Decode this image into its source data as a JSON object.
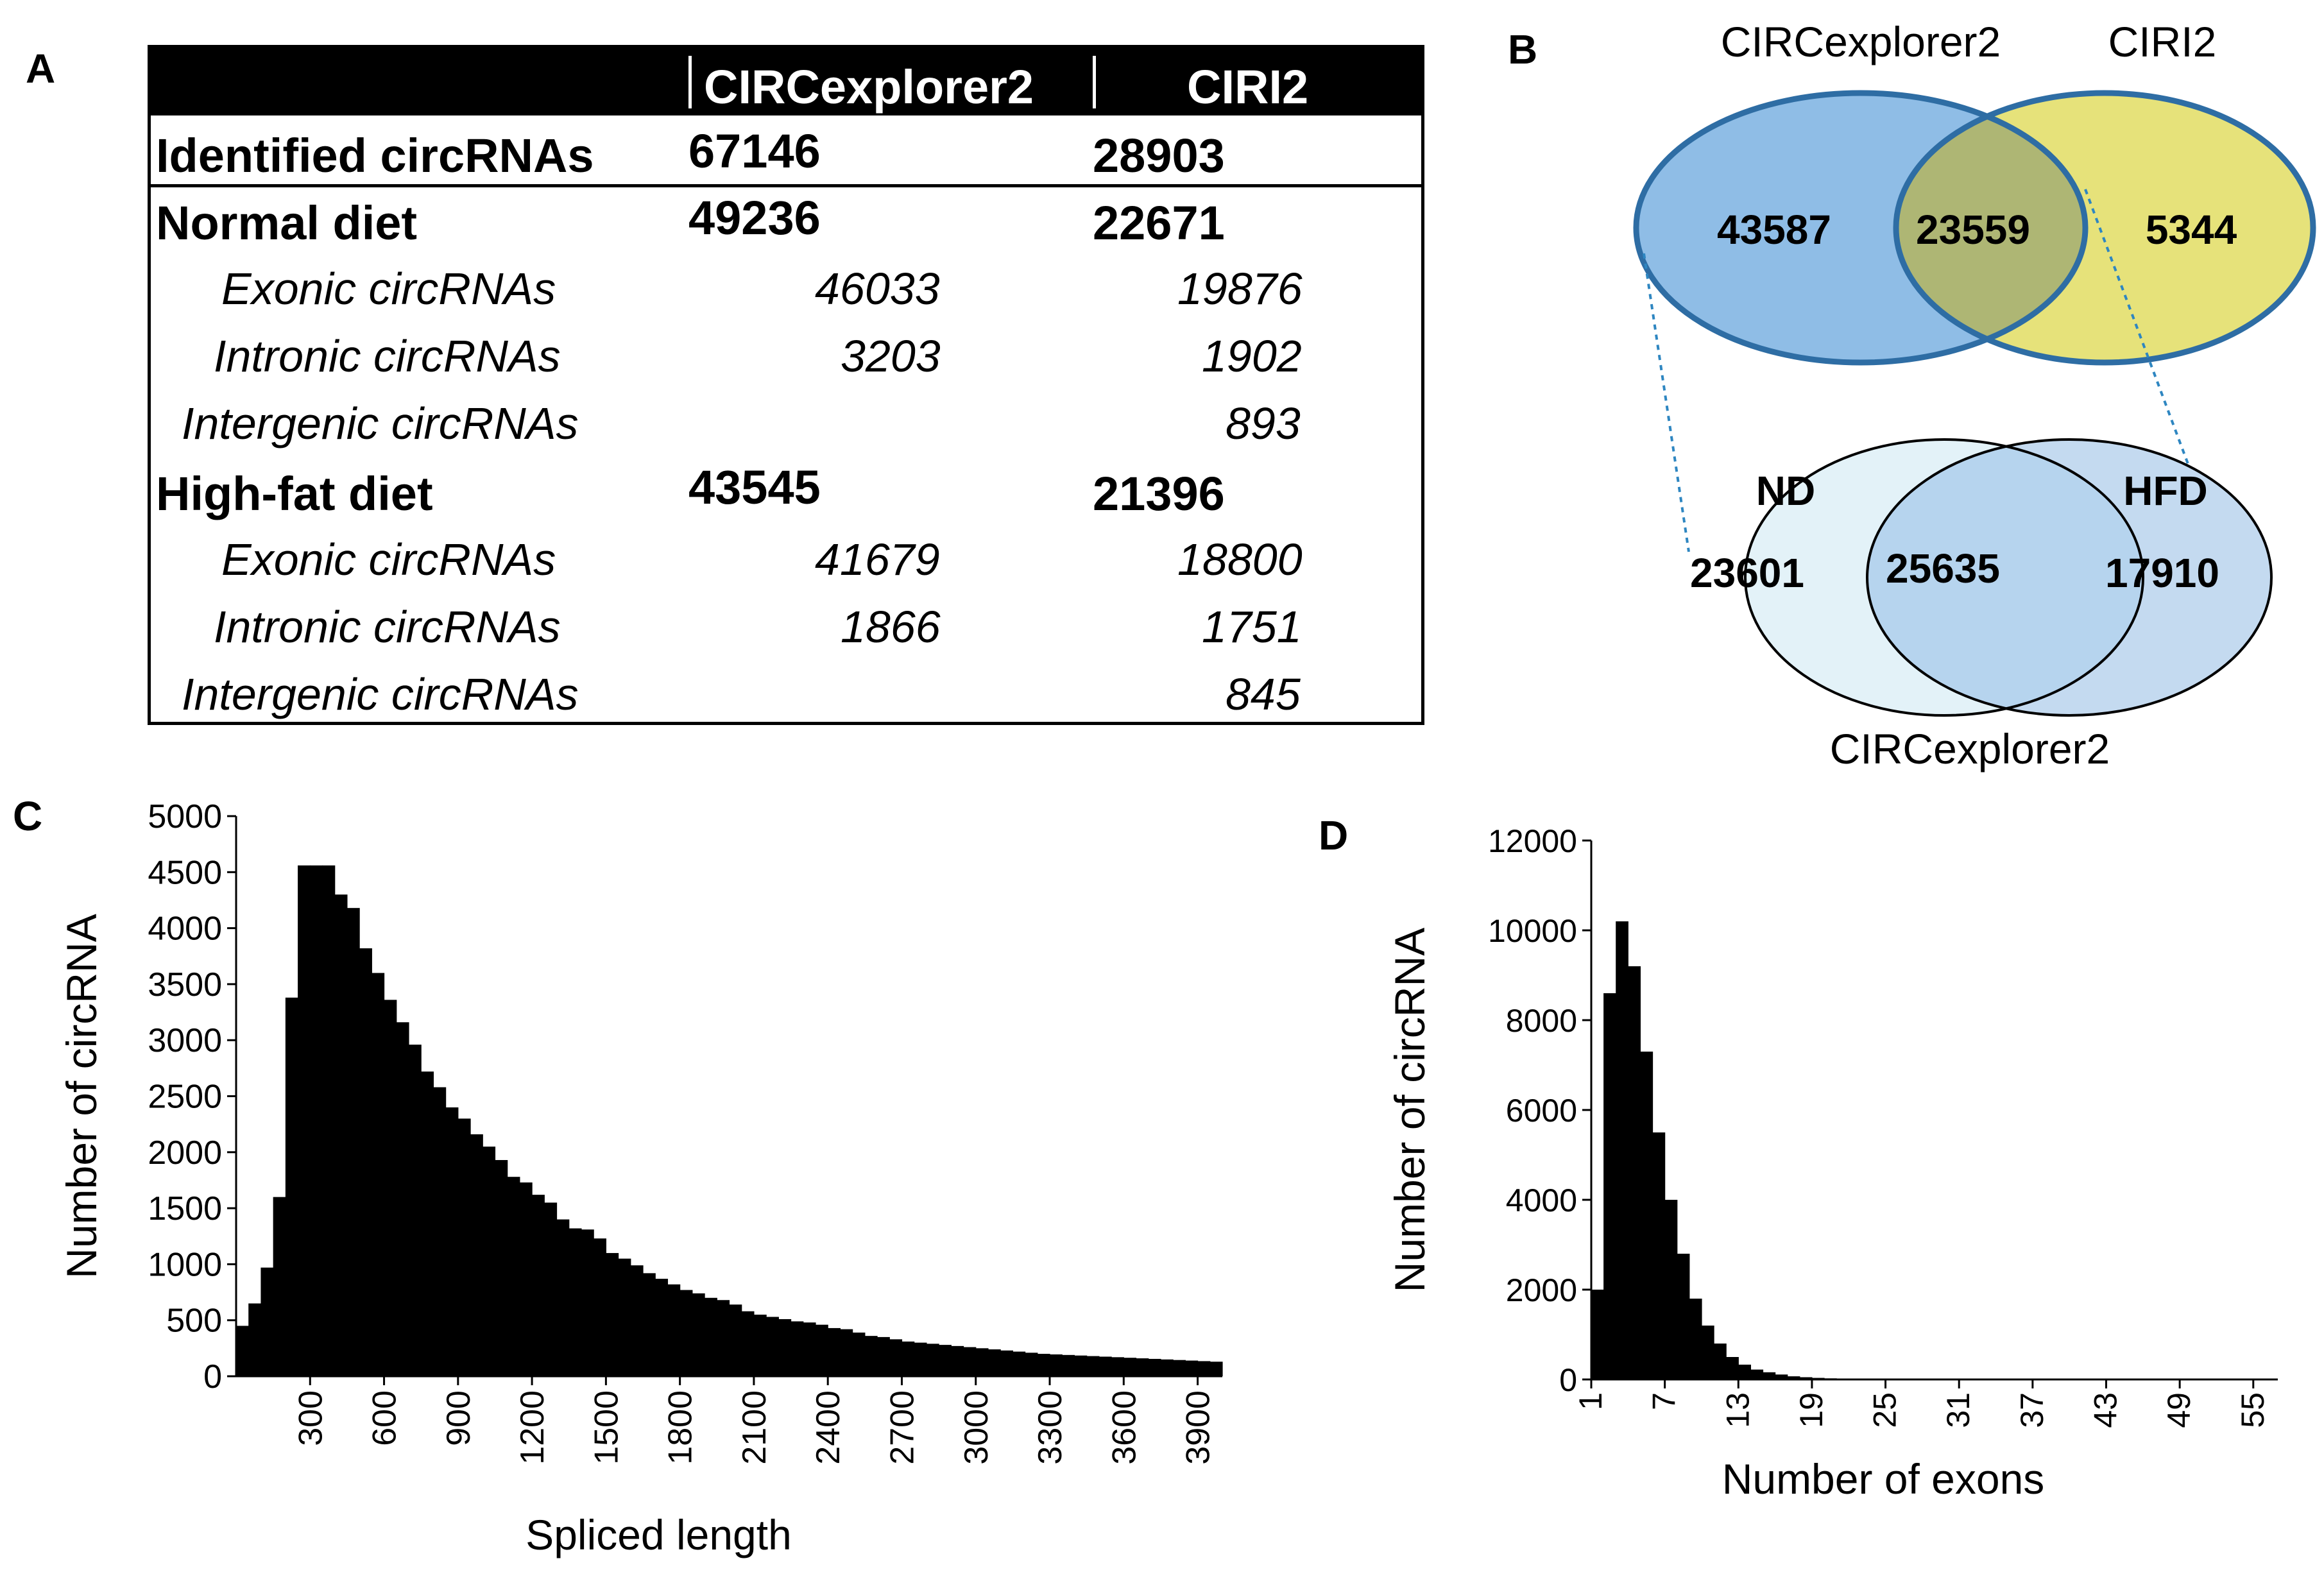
{
  "panel_labels": {
    "a": "A",
    "b": "B",
    "c": "C",
    "d": "D"
  },
  "table_a": {
    "header": {
      "col1": "CIRCexplorer2",
      "col2": "CIRI2"
    },
    "rows": [
      {
        "label": "Identified circRNAs",
        "c1": "67146",
        "c2": "28903",
        "style": "bold"
      },
      {
        "label": "Normal diet",
        "c1": "49236",
        "c2": "22671",
        "style": "bold"
      },
      {
        "label": "Exonic circRNAs",
        "c1": "46033",
        "c2": "19876",
        "style": "italic"
      },
      {
        "label": "Intronic circRNAs",
        "c1": "3203",
        "c2": "1902",
        "style": "italic"
      },
      {
        "label": "Intergenic circRNAs",
        "c1": "",
        "c2": "893",
        "style": "italic"
      },
      {
        "label": "High-fat diet",
        "c1": "43545",
        "c2": "21396",
        "style": "bold"
      },
      {
        "label": "Exonic circRNAs",
        "c1": "41679",
        "c2": "18800",
        "style": "italic"
      },
      {
        "label": "Intronic circRNAs",
        "c1": "1866",
        "c2": "1751",
        "style": "italic"
      },
      {
        "label": "Intergenic circRNAs",
        "c1": "",
        "c2": "845",
        "style": "italic"
      }
    ]
  },
  "venn_b": {
    "top": {
      "left_title": "CIRCexplorer2",
      "right_title": "CIRI2",
      "left_only": "43587",
      "both": "23559",
      "right_only": "5344",
      "left_color": "#8fbde6",
      "right_color": "#e6e27a",
      "overlap_color": "#aeb674",
      "stroke": "#2e6da4"
    },
    "bottom": {
      "left_title": "ND",
      "right_title": "HFD",
      "left_only": "23601",
      "both": "25635",
      "right_only": "17910",
      "caption": "CIRCexplorer2",
      "left_color": "#e3f2f8",
      "right_color": "#c4daf0",
      "overlap_color": "#b6d4ee"
    }
  },
  "chart_data": [
    {
      "type": "bar",
      "panel": "C",
      "title": "",
      "xlabel": "Spliced length",
      "ylabel": "Number of circRNA",
      "ylim": [
        0,
        5000
      ],
      "yticks": [
        0,
        500,
        1000,
        1500,
        2000,
        2500,
        3000,
        3500,
        4000,
        4500,
        5000
      ],
      "xlim": [
        0,
        4000
      ],
      "bin_width": 50,
      "xticks": [
        300,
        600,
        900,
        1200,
        1500,
        1800,
        2100,
        2400,
        2700,
        3000,
        3300,
        3600,
        3900
      ],
      "values": [
        450,
        650,
        970,
        1600,
        3380,
        4560,
        4560,
        4560,
        4300,
        4180,
        3820,
        3600,
        3360,
        3160,
        2960,
        2720,
        2580,
        2400,
        2300,
        2160,
        2050,
        1930,
        1780,
        1730,
        1620,
        1550,
        1400,
        1320,
        1310,
        1230,
        1100,
        1050,
        990,
        920,
        870,
        820,
        770,
        740,
        700,
        680,
        640,
        580,
        550,
        530,
        510,
        490,
        480,
        460,
        430,
        420,
        390,
        360,
        350,
        330,
        310,
        300,
        290,
        280,
        270,
        260,
        250,
        240,
        230,
        220,
        210,
        200,
        195,
        190,
        185,
        180,
        175,
        170,
        165,
        160,
        155,
        150,
        145,
        140,
        135,
        130
      ]
    },
    {
      "type": "bar",
      "panel": "D",
      "title": "",
      "xlabel": "Number of exons",
      "ylabel": "Number of circRNA",
      "ylim": [
        0,
        12000
      ],
      "yticks": [
        0,
        2000,
        4000,
        6000,
        8000,
        10000,
        12000
      ],
      "categories": [
        1,
        2,
        3,
        4,
        5,
        6,
        7,
        8,
        9,
        10,
        11,
        12,
        13,
        14,
        15,
        16,
        17,
        18,
        19,
        20,
        21,
        22,
        23,
        24,
        25,
        26,
        27,
        28,
        29,
        30,
        31,
        32,
        33,
        34,
        35,
        36,
        37,
        38,
        39,
        40,
        41,
        42,
        43,
        44,
        45,
        46,
        47,
        48,
        49,
        50,
        51,
        52,
        53,
        54,
        55,
        56
      ],
      "xtick_labels": [
        1,
        7,
        13,
        19,
        25,
        31,
        37,
        43,
        49,
        55
      ],
      "values": [
        2000,
        8600,
        10200,
        9200,
        7300,
        5500,
        4000,
        2800,
        1800,
        1200,
        800,
        500,
        330,
        220,
        160,
        110,
        70,
        50,
        35,
        25,
        18,
        12,
        9,
        7,
        5,
        4,
        3,
        3,
        2,
        2,
        2,
        1,
        1,
        1,
        1,
        1,
        1,
        1,
        0,
        0,
        0,
        0,
        0,
        0,
        0,
        0,
        0,
        0,
        0,
        0,
        0,
        0,
        0,
        0,
        0,
        0
      ]
    }
  ]
}
